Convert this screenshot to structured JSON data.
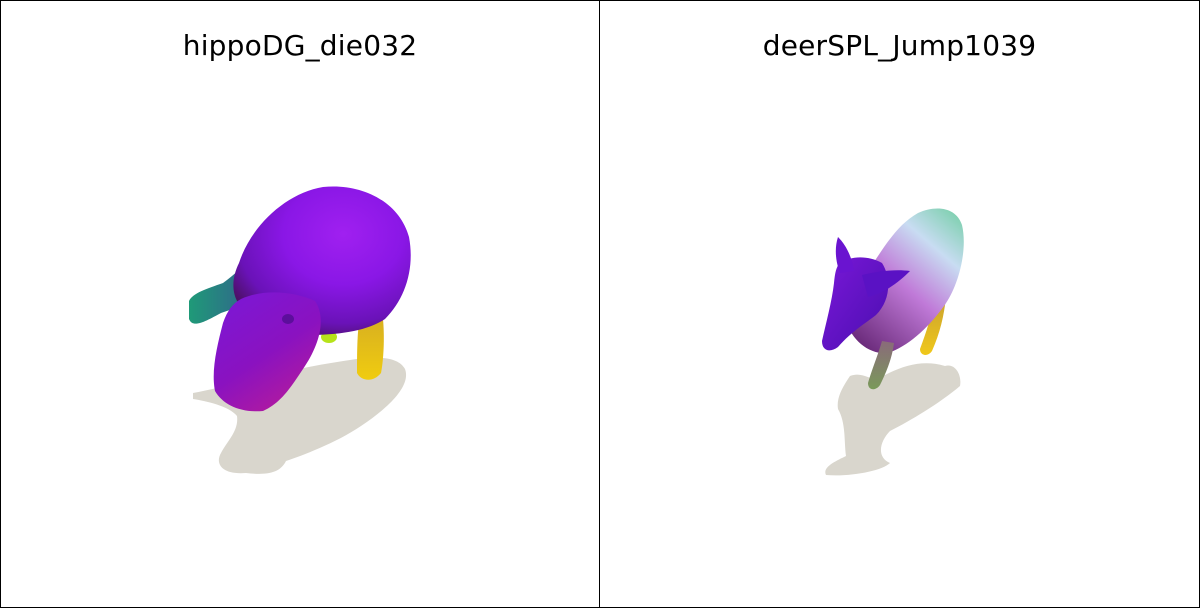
{
  "panels": [
    {
      "title": "hippoDG_die032",
      "subject": "hippo-mesh"
    },
    {
      "title": "deerSPL_Jump1039",
      "subject": "deer-mesh"
    }
  ],
  "colors": {
    "shadow": "#d9d6cd",
    "purple": "#8a17e6",
    "deep_purple": "#5a0fc0",
    "magenta": "#b02bb0",
    "teal": "#1f9a78",
    "yellow": "#e6c21a",
    "lime": "#b6e31a",
    "light_blue": "#b8d7ee",
    "olive": "#7a8a4a"
  }
}
